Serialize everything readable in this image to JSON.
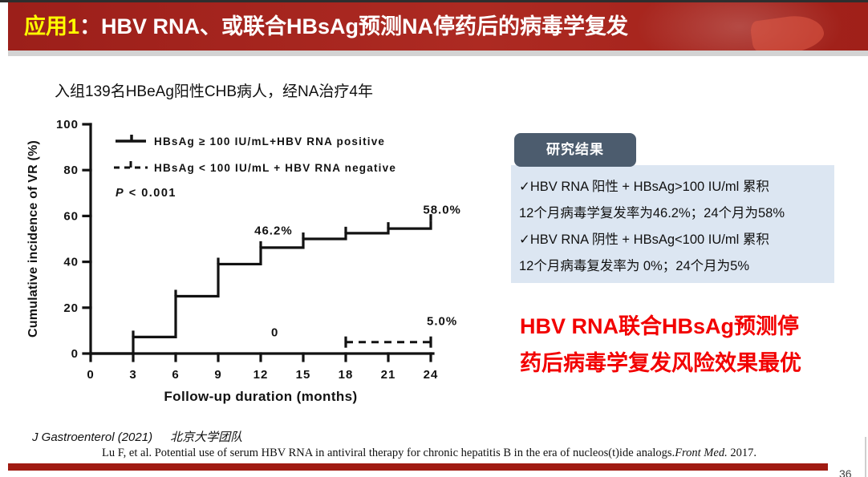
{
  "header": {
    "title_accent": "应用1",
    "title_main": "：HBV RNA、或联合HBsAg预测NA停药后的病毒学复发",
    "accent_color": "#FFFF00",
    "bg_color": "#A8241F"
  },
  "subtitle": "入组139名HBeAg阳性CHB病人，经NA治疗4年",
  "chart_data": {
    "type": "line",
    "subtype": "kaplan-meier-step",
    "title": "",
    "xlabel": "Follow-up duration (months)",
    "ylabel": "Cumulative incidence of VR (%)",
    "xlim": [
      0,
      24
    ],
    "ylim": [
      0,
      100
    ],
    "xticks": [
      0,
      3,
      6,
      9,
      12,
      15,
      18,
      21,
      24
    ],
    "yticks": [
      0,
      20,
      40,
      60,
      80,
      100
    ],
    "grid": false,
    "legend_position": "top-left",
    "p_value_italic": "P",
    "p_value_rest": " < 0.001",
    "line_color": "#121212",
    "series": [
      {
        "name": "HBsAg ≥ 100 IU/mL+HBV RNA positive",
        "style": "solid",
        "points": [
          [
            0,
            0
          ],
          [
            3,
            7.2
          ],
          [
            6,
            25
          ],
          [
            9,
            39
          ],
          [
            12,
            46.2
          ],
          [
            15,
            50
          ],
          [
            18,
            52.5
          ],
          [
            21,
            54.5
          ],
          [
            24,
            58
          ]
        ]
      },
      {
        "name": "HBsAg < 100 IU/mL + HBV RNA negative",
        "style": "dashed",
        "points": [
          [
            18,
            5
          ],
          [
            24,
            5
          ]
        ]
      }
    ],
    "annotations": [
      {
        "text": "46.2%",
        "x": 12.9,
        "y": 52
      },
      {
        "text": "58.0%",
        "x": 24.8,
        "y": 61
      },
      {
        "text": "5.0%",
        "x": 24.8,
        "y": 12.5
      },
      {
        "text": "0",
        "x": 13,
        "y": 7.5
      }
    ]
  },
  "results": {
    "badge": "研究结果",
    "badge_bg": "#4C5C6E",
    "box_bg": "#DCE6F2",
    "lines": [
      "✓HBV RNA 阳性 + HBsAg>100 IU/ml 累积",
      "12个月病毒学复发率为46.2%；24个月为58%",
      "✓HBV RNA 阴性 + HBsAg<100 IU/ml 累积",
      "12个月病毒复发率为 0%；24个月为5%"
    ]
  },
  "conclusion": {
    "line1": "HBV RNA联合HBsAg预测停",
    "line2": "药后病毒学复发风险效果最优",
    "color": "#F20000"
  },
  "footer": {
    "ref1_journal": "J Gastroenterol (2021)",
    "ref1_team": "北京大学团队",
    "ref2_main": "Lu F, et al. Potential use of serum HBV RNA in antiviral therapy for chronic hepatitis B in the era of nucleos(t)ide analogs.",
    "ref2_journal": "Front Med.",
    "ref2_year": " 2017.",
    "page_number": "36",
    "bar_color": "#A01B12"
  }
}
